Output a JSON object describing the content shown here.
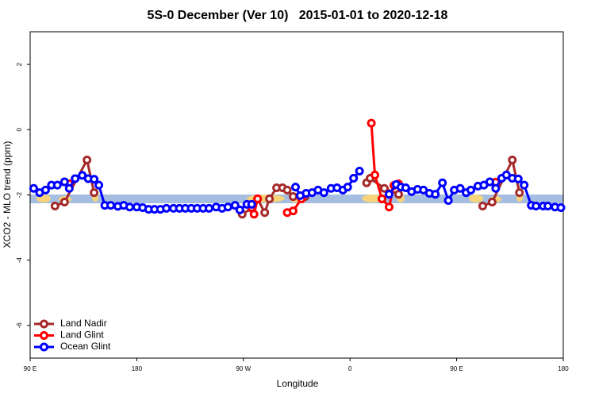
{
  "chart_data": {
    "type": "line",
    "title": "5S-0 December (Ver 10)   2015-01-01 to 2020-12-18",
    "x_label": "Longitude",
    "y_label": "XCO2 - MLO trend (ppm)",
    "xlim": [
      90,
      540
    ],
    "ylim": [
      -7,
      3
    ],
    "xticks": [
      {
        "value": 90,
        "label": "90 E"
      },
      180,
      {
        "value": 270,
        "label": "90 W"
      },
      {
        "value": 360,
        "label": "0"
      },
      {
        "value": 450,
        "label": "90 E"
      },
      {
        "value": 540,
        "label": "180"
      }
    ],
    "yticks": [
      -6,
      -4,
      -2,
      0,
      2
    ],
    "legend": "bottom-left",
    "series": [
      {
        "name": "Land Nadir",
        "color": "#a52a2a",
        "x": [
          111,
          119,
          138,
          144,
          200,
          269,
          277,
          282,
          288,
          292,
          298,
          303,
          307,
          312,
          322,
          350,
          374,
          377,
          389,
          401,
          440,
          472,
          480,
          497,
          503
        ],
        "values": [
          -2.34,
          -2.22,
          -0.93,
          -1.93,
          null,
          -2.59,
          -2.41,
          -2.12,
          -2.54,
          -2.12,
          -1.78,
          -1.78,
          -1.85,
          -2.05,
          -2.05,
          null,
          -1.63,
          -1.49,
          -1.8,
          -1.98,
          null,
          -2.34,
          -2.22,
          -0.93,
          -1.93
        ]
      },
      {
        "name": "Land Glint",
        "color": "#ff0000",
        "x": [
          123,
          200,
          277,
          279,
          282,
          295,
          307,
          312,
          319,
          350,
          378,
          381,
          387,
          393,
          397,
          401,
          440,
          483
        ],
        "values": [
          -1.66,
          null,
          -2.39,
          -2.59,
          -2.12,
          null,
          -2.54,
          -2.49,
          -2.12,
          null,
          0.2,
          -1.39,
          -2.12,
          -2.37,
          -1.71,
          -1.66,
          null,
          -1.61
        ]
      },
      {
        "name": "Ocean Glint",
        "color": "#0000ff",
        "x": [
          93,
          98,
          103,
          108,
          113,
          119,
          123,
          128,
          134,
          139,
          144,
          148,
          153,
          158,
          164,
          169,
          174,
          180,
          185,
          190,
          195,
          200,
          205,
          211,
          216,
          221,
          226,
          231,
          236,
          241,
          247,
          252,
          257,
          263,
          267,
          273,
          277,
          295,
          314,
          318,
          323,
          328,
          333,
          338,
          344,
          349,
          354,
          358,
          363,
          368,
          380,
          393,
          399,
          403,
          407,
          412,
          417,
          422,
          427,
          432,
          438,
          443,
          448,
          453,
          458,
          462,
          468,
          473,
          478,
          483,
          488,
          492,
          497,
          502,
          507,
          513,
          517,
          523,
          527,
          533,
          538
        ],
        "values": [
          -1.8,
          -1.93,
          -1.85,
          -1.7,
          -1.7,
          -1.6,
          -1.8,
          -1.5,
          -1.4,
          -1.5,
          -1.52,
          -1.7,
          -2.32,
          -2.32,
          -2.35,
          -2.32,
          -2.37,
          -2.37,
          -2.39,
          -2.44,
          -2.44,
          -2.44,
          -2.41,
          -2.41,
          -2.41,
          -2.41,
          -2.41,
          -2.41,
          -2.41,
          -2.41,
          -2.37,
          -2.41,
          -2.37,
          -2.32,
          -2.46,
          -2.29,
          -2.29,
          null,
          -1.76,
          -2.02,
          -1.95,
          -1.93,
          -1.85,
          -1.93,
          -1.8,
          -1.78,
          -1.85,
          -1.76,
          -1.49,
          -1.27,
          null,
          -1.98,
          -1.68,
          -1.76,
          -1.78,
          -1.9,
          -1.83,
          -1.85,
          -1.95,
          -1.98,
          -1.63,
          -2.17,
          -1.85,
          -1.8,
          -1.93,
          -1.85,
          -1.73,
          -1.7,
          -1.6,
          -1.8,
          -1.49,
          -1.39,
          -1.49,
          -1.51,
          -1.7,
          -2.32,
          -2.34,
          -2.34,
          -2.34,
          -2.37,
          -2.39
        ]
      }
    ]
  }
}
